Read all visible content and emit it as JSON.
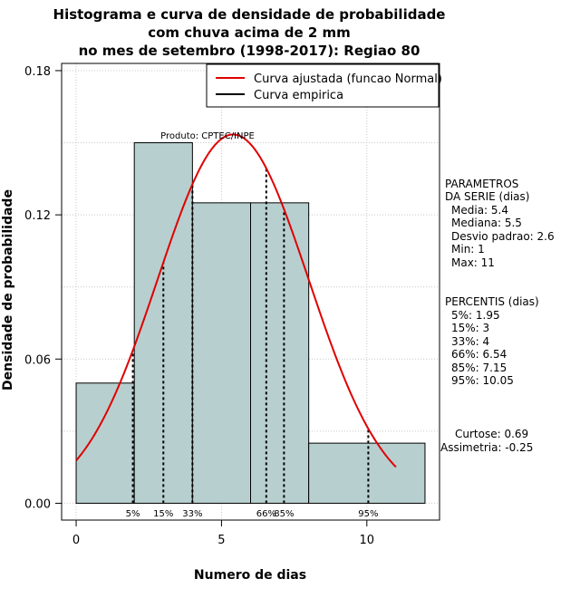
{
  "chart_data": {
    "type": "bar",
    "title_lines": [
      "Histograma e curva de densidade de probabilidade",
      "com chuva acima de 2 mm",
      "no mes de setembro (1998-2017): Regiao 80"
    ],
    "xlabel": "Numero de dias",
    "ylabel": "Densidade de probabilidade",
    "xlim": [
      -0.5,
      12.5
    ],
    "ylim": [
      -0.007,
      0.183
    ],
    "x_ticks": [
      0,
      5,
      10
    ],
    "y_ticks": [
      0.0,
      0.06,
      0.12,
      0.18
    ],
    "y_tick_labels": [
      "0.00",
      "0.06",
      "0.12",
      "0.18"
    ],
    "grid": true,
    "bins": [
      {
        "x0": 0,
        "x1": 2,
        "density": 0.05
      },
      {
        "x0": 2,
        "x1": 4,
        "density": 0.15
      },
      {
        "x0": 4,
        "x1": 6,
        "density": 0.125
      },
      {
        "x0": 6,
        "x1": 8,
        "density": 0.125
      },
      {
        "x0": 8,
        "x1": 12,
        "density": 0.025
      }
    ],
    "bar_color": "#b8cfcf",
    "normal_curve": {
      "name": "Curva ajustada (funcao Normal)",
      "mean": 5.4,
      "sd": 2.6,
      "x_range": [
        0,
        11
      ],
      "color": "#e00000"
    },
    "empirical_curve": {
      "name": "Curva empirica",
      "color": "#000000"
    },
    "legend_position": "top-right",
    "percentile_lines": [
      {
        "label": "5%",
        "x": 1.95
      },
      {
        "label": "15%",
        "x": 3
      },
      {
        "label": "33%",
        "x": 4
      },
      {
        "label": "66%",
        "x": 6.54
      },
      {
        "label": "85%",
        "x": 7.15
      },
      {
        "label": "95%",
        "x": 10.05
      }
    ],
    "annotation": "Produto: CPTEC/INPE"
  },
  "side_panel": {
    "params_title_1": "PARAMETROS",
    "params_title_2": "DA SERIE (dias)",
    "params": [
      "Media: 5.4",
      "Mediana: 5.5",
      "Desvio padrao: 2.6",
      "Min: 1",
      "Max: 11"
    ],
    "percentis_title": "PERCENTIS (dias)",
    "percentis": [
      "5%: 1.95",
      "15%: 3",
      "33%: 4",
      "66%: 6.54",
      "85%: 7.15",
      "95%: 10.05"
    ],
    "curtose": "Curtose: 0.69",
    "assimetria": "Assimetria: -0.25"
  }
}
